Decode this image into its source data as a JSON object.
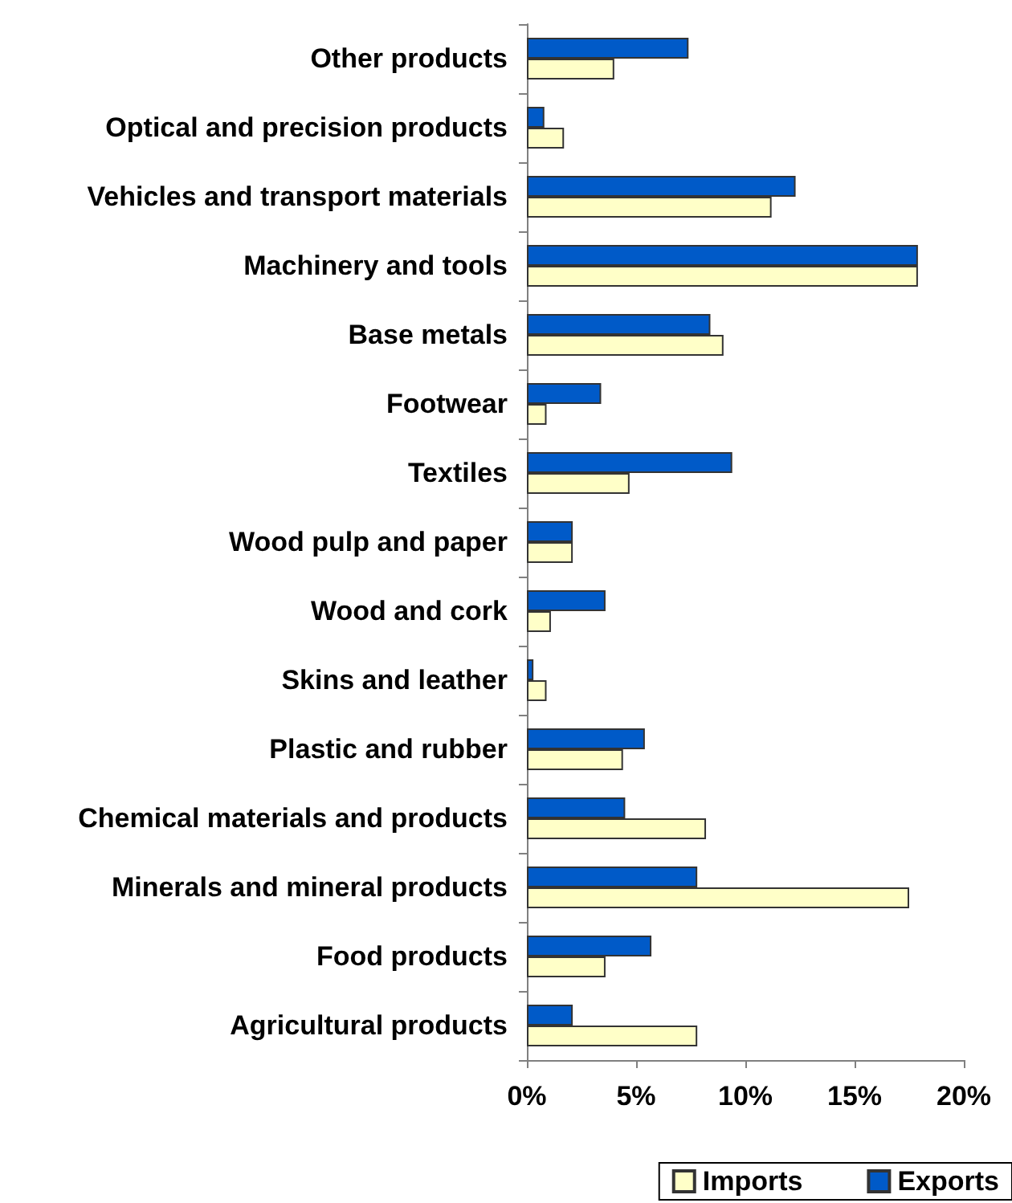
{
  "chart_data": {
    "type": "bar",
    "orientation": "horizontal",
    "categories": [
      "Other products",
      "Optical and precision products",
      "Vehicles and transport materials",
      "Machinery and tools",
      "Base metals",
      "Footwear",
      "Textiles",
      "Wood pulp and paper",
      "Wood and cork",
      "Skins and leather",
      "Plastic and rubber",
      "Chemical materials and products",
      "Minerals and mineral products",
      "Food products",
      "Agricultural products"
    ],
    "series": [
      {
        "name": "Imports",
        "color": "#ffffc8",
        "values": [
          4.0,
          1.7,
          11.2,
          17.9,
          9.0,
          0.9,
          4.7,
          2.1,
          1.1,
          0.9,
          4.4,
          8.2,
          17.5,
          3.6,
          7.8
        ]
      },
      {
        "name": "Exports",
        "color": "#005ac8",
        "values": [
          7.4,
          0.8,
          12.3,
          17.9,
          8.4,
          3.4,
          9.4,
          2.1,
          3.6,
          0.3,
          5.4,
          4.5,
          7.8,
          5.7,
          2.1
        ]
      }
    ],
    "xlim": [
      0,
      20
    ],
    "xticks": [
      {
        "value": 0,
        "label": "0%"
      },
      {
        "value": 5,
        "label": "5%"
      },
      {
        "value": 10,
        "label": "10%"
      },
      {
        "value": 15,
        "label": "15%"
      },
      {
        "value": 20,
        "label": "20%"
      }
    ],
    "grid": false,
    "legend": "bottom"
  }
}
